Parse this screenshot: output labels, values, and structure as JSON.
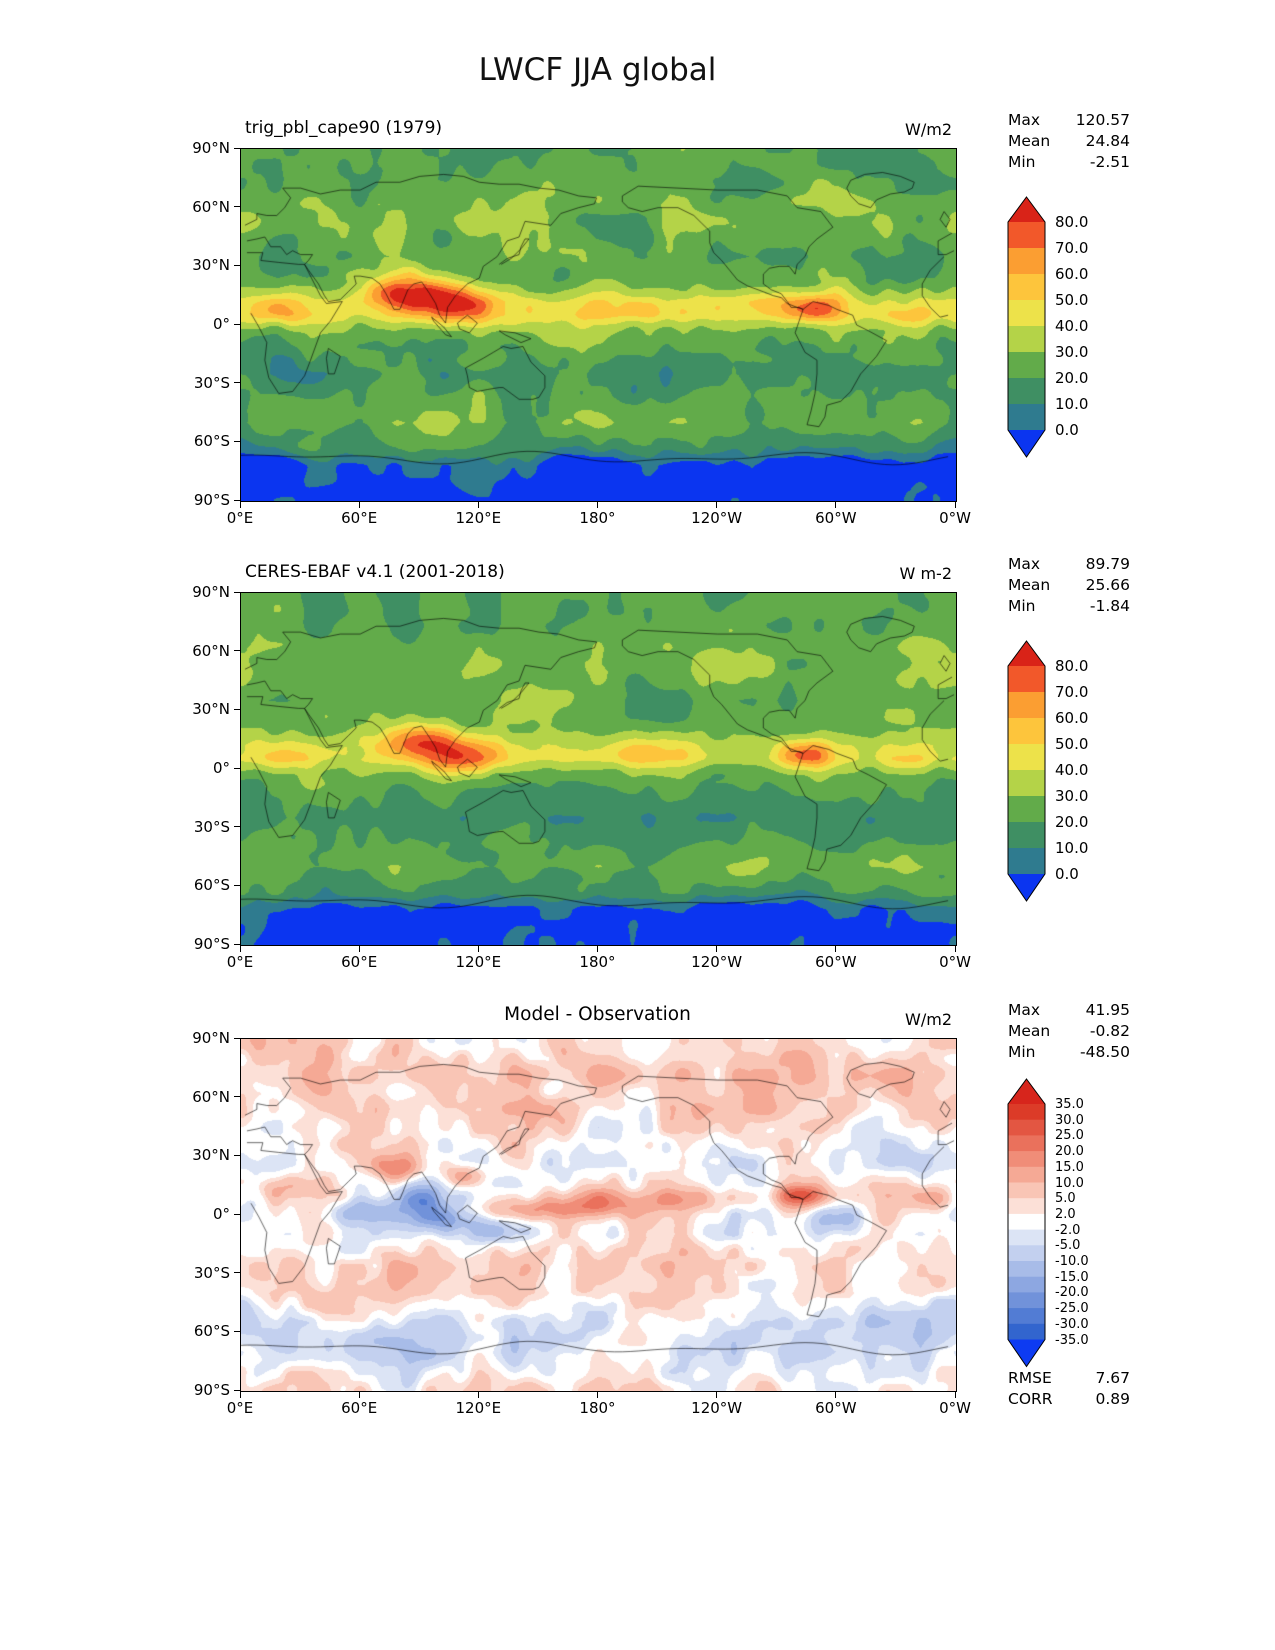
{
  "title": "LWCF JJA global",
  "axes": {
    "lat_ticks": [
      "90°N",
      "60°N",
      "30°N",
      "0°",
      "30°S",
      "60°S",
      "90°S"
    ],
    "lon_ticks": [
      "0°E",
      "60°E",
      "120°E",
      "180°",
      "120°W",
      "60°W",
      "0°W"
    ]
  },
  "panels": [
    {
      "title": "trig_pbl_cape90 (1979)",
      "unit": "W/m2",
      "stats": [
        {
          "label": "Max",
          "value": "120.57"
        },
        {
          "label": "Mean",
          "value": "24.84"
        },
        {
          "label": "Min",
          "value": "-2.51"
        }
      ],
      "colorbar": {
        "tick_labels": [
          "80.0",
          "70.0",
          "60.0",
          "50.0",
          "40.0",
          "30.0",
          "20.0",
          "10.0",
          "0.0"
        ]
      }
    },
    {
      "title": "CERES-EBAF v4.1 (2001-2018)",
      "unit": "W m-2",
      "stats": [
        {
          "label": "Max",
          "value": "89.79"
        },
        {
          "label": "Mean",
          "value": "25.66"
        },
        {
          "label": "Min",
          "value": "-1.84"
        }
      ],
      "colorbar": {
        "tick_labels": [
          "80.0",
          "70.0",
          "60.0",
          "50.0",
          "40.0",
          "30.0",
          "20.0",
          "10.0",
          "0.0"
        ]
      }
    },
    {
      "title": "Model - Observation",
      "unit": "W/m2",
      "stats": [
        {
          "label": "Max",
          "value": "41.95"
        },
        {
          "label": "Mean",
          "value": "-0.82"
        },
        {
          "label": "Min",
          "value": "-48.50"
        }
      ],
      "colorbar": {
        "tick_labels": [
          "35.0",
          "30.0",
          "25.0",
          "20.0",
          "15.0",
          "10.0",
          "5.0",
          "2.0",
          "-2.0",
          "-5.0",
          "-10.0",
          "-15.0",
          "-20.0",
          "-25.0",
          "-30.0",
          "-35.0"
        ]
      },
      "extra_stats": [
        {
          "label": "RMSE",
          "value": "7.67"
        },
        {
          "label": "CORR",
          "value": "0.89"
        }
      ]
    }
  ],
  "chart_data": [
    {
      "type": "heatmap",
      "title": "trig_pbl_cape90 (1979)",
      "units": "W/m2",
      "x": {
        "label": "longitude",
        "range": [
          0,
          360
        ],
        "tick_labels": [
          "0°E",
          "60°E",
          "120°E",
          "180°",
          "120°W",
          "60°W",
          "0°W"
        ]
      },
      "y": {
        "label": "latitude",
        "range": [
          -90,
          90
        ],
        "tick_labels": [
          "90°N",
          "60°N",
          "30°N",
          "0°",
          "30°S",
          "60°S",
          "90°S"
        ]
      },
      "levels": [
        0,
        10,
        20,
        30,
        40,
        50,
        60,
        70,
        80
      ],
      "colors_under_to_over": [
        "#0b35f0",
        "#2f7b8f",
        "#3f8f63",
        "#62ab4a",
        "#b4d348",
        "#ede24a",
        "#fdc53c",
        "#fb9e32",
        "#f2582a",
        "#d92318"
      ],
      "colorbar_extend": "both",
      "stats": {
        "max": 120.57,
        "mean": 24.84,
        "min": -2.51
      }
    },
    {
      "type": "heatmap",
      "title": "CERES-EBAF v4.1 (2001-2018)",
      "units": "W m-2",
      "x": {
        "label": "longitude",
        "range": [
          0,
          360
        ],
        "tick_labels": [
          "0°E",
          "60°E",
          "120°E",
          "180°",
          "120°W",
          "60°W",
          "0°W"
        ]
      },
      "y": {
        "label": "latitude",
        "range": [
          -90,
          90
        ],
        "tick_labels": [
          "90°N",
          "60°N",
          "30°N",
          "0°",
          "30°S",
          "60°S",
          "90°S"
        ]
      },
      "levels": [
        0,
        10,
        20,
        30,
        40,
        50,
        60,
        70,
        80
      ],
      "colors_under_to_over": [
        "#0b35f0",
        "#2f7b8f",
        "#3f8f63",
        "#62ab4a",
        "#b4d348",
        "#ede24a",
        "#fdc53c",
        "#fb9e32",
        "#f2582a",
        "#d92318"
      ],
      "colorbar_extend": "both",
      "stats": {
        "max": 89.79,
        "mean": 25.66,
        "min": -1.84
      }
    },
    {
      "type": "heatmap",
      "title": "Model - Observation",
      "units": "W/m2",
      "x": {
        "label": "longitude",
        "range": [
          0,
          360
        ],
        "tick_labels": [
          "0°E",
          "60°E",
          "120°E",
          "180°",
          "120°W",
          "60°W",
          "0°W"
        ]
      },
      "y": {
        "label": "latitude",
        "range": [
          -90,
          90
        ],
        "tick_labels": [
          "90°N",
          "60°N",
          "30°N",
          "0°",
          "30°S",
          "60°S",
          "90°S"
        ]
      },
      "levels": [
        -35,
        -30,
        -25,
        -20,
        -15,
        -10,
        -5,
        -2,
        2,
        5,
        10,
        15,
        20,
        25,
        30,
        35
      ],
      "colors_under_to_over": [
        "#0d3bf2",
        "#3265ce",
        "#527cd4",
        "#7192da",
        "#8da7e1",
        "#a8bce8",
        "#c3d0ef",
        "#dce4f5",
        "#ffffff",
        "#fce0d7",
        "#f9c5b5",
        "#f5a995",
        "#f08d78",
        "#ea715c",
        "#e35642",
        "#dc3b28",
        "#d7251c"
      ],
      "colorbar_extend": "both",
      "stats": {
        "max": 41.95,
        "mean": -0.82,
        "min": -48.5
      },
      "rmse": 7.67,
      "corr": 0.89
    }
  ]
}
